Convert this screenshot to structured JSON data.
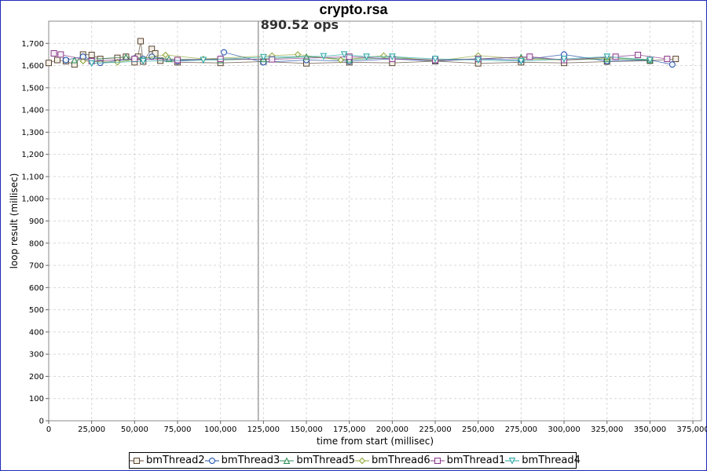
{
  "chart_data": {
    "type": "scatter",
    "title": "crypto.rsa",
    "xlabel": "time from start (millisec)",
    "ylabel": "loop result (millisec)",
    "xlim": [
      0,
      380000
    ],
    "ylim": [
      0,
      1800
    ],
    "x_ticks": [
      "0",
      "25,000",
      "50,000",
      "75,000",
      "100,000",
      "125,000",
      "150,000",
      "175,000",
      "200,000",
      "225,000",
      "250,000",
      "275,000",
      "300,000",
      "325,000",
      "350,000",
      "375,000"
    ],
    "y_ticks": [
      "0",
      "100",
      "200",
      "300",
      "400",
      "500",
      "600",
      "700",
      "800",
      "900",
      "1,000",
      "1,100",
      "1,200",
      "1,300",
      "1,400",
      "1,500",
      "1,600",
      "1,700"
    ],
    "grid": true,
    "legend_position": "bottom",
    "vertical_marker": {
      "x": 122000,
      "label": "890.52 ops"
    },
    "series": [
      {
        "name": "bmThread2",
        "marker": "square",
        "color": "#5a4636",
        "x": [
          0,
          5000,
          10000,
          15000,
          20000,
          25000,
          30000,
          40000,
          45000,
          50000,
          52000,
          53500,
          55000,
          60000,
          62000,
          65000,
          75000,
          100000,
          125000,
          150000,
          175000,
          200000,
          225000,
          250000,
          275000,
          300000,
          325000,
          350000,
          365000
        ],
        "y": [
          1612,
          1625,
          1620,
          1605,
          1650,
          1648,
          1630,
          1635,
          1640,
          1615,
          1640,
          1710,
          1618,
          1675,
          1655,
          1622,
          1615,
          1612,
          1618,
          1610,
          1615,
          1612,
          1620,
          1610,
          1615,
          1612,
          1618,
          1622,
          1630
        ]
      },
      {
        "name": "bmThread3",
        "marker": "circle",
        "color": "#1f4fa8",
        "x": [
          10000,
          20000,
          30000,
          50000,
          55000,
          60000,
          75000,
          100000,
          102000,
          125000,
          150000,
          175000,
          200000,
          225000,
          250000,
          275000,
          300000,
          325000,
          350000,
          363000
        ],
        "y": [
          1625,
          1640,
          1612,
          1632,
          1630,
          1640,
          1620,
          1630,
          1660,
          1615,
          1625,
          1620,
          1630,
          1620,
          1630,
          1625,
          1650,
          1620,
          1625,
          1605
        ]
      },
      {
        "name": "bmThread5",
        "marker": "triangle-up",
        "color": "#2e8b57",
        "x": [
          15000,
          45000,
          70000,
          100000,
          125000,
          150000,
          175000,
          200000,
          225000,
          250000,
          275000,
          300000,
          325000,
          350000
        ],
        "y": [
          1625,
          1638,
          1630,
          1625,
          1630,
          1640,
          1628,
          1635,
          1625,
          1630,
          1638,
          1625,
          1630,
          1625
        ]
      },
      {
        "name": "bmThread6",
        "marker": "diamond",
        "color": "#8fa63a",
        "x": [
          20000,
          40000,
          68000,
          90000,
          130000,
          145000,
          170000,
          195000,
          225000,
          250000,
          275000,
          300000,
          325000,
          350000
        ],
        "y": [
          1620,
          1615,
          1648,
          1630,
          1645,
          1650,
          1625,
          1645,
          1620,
          1645,
          1630,
          1625,
          1635,
          1628
        ]
      },
      {
        "name": "bmThread1",
        "marker": "square-open",
        "color": "#8b3a8b",
        "x": [
          3000,
          7000,
          25000,
          50000,
          75000,
          100000,
          130000,
          175000,
          200000,
          225000,
          250000,
          280000,
          300000,
          330000,
          343000,
          360000
        ],
        "y": [
          1655,
          1650,
          1620,
          1630,
          1625,
          1630,
          1628,
          1640,
          1630,
          1625,
          1630,
          1640,
          1625,
          1640,
          1648,
          1630
        ]
      },
      {
        "name": "bmThread4",
        "marker": "triangle-down",
        "color": "#2aa6a6",
        "x": [
          25000,
          55000,
          90000,
          125000,
          160000,
          172000,
          185000,
          200000,
          225000,
          250000,
          275000,
          300000,
          325000,
          350000
        ],
        "y": [
          1610,
          1620,
          1625,
          1638,
          1642,
          1650,
          1640,
          1640,
          1630,
          1625,
          1620,
          1630,
          1640,
          1625
        ]
      }
    ]
  }
}
